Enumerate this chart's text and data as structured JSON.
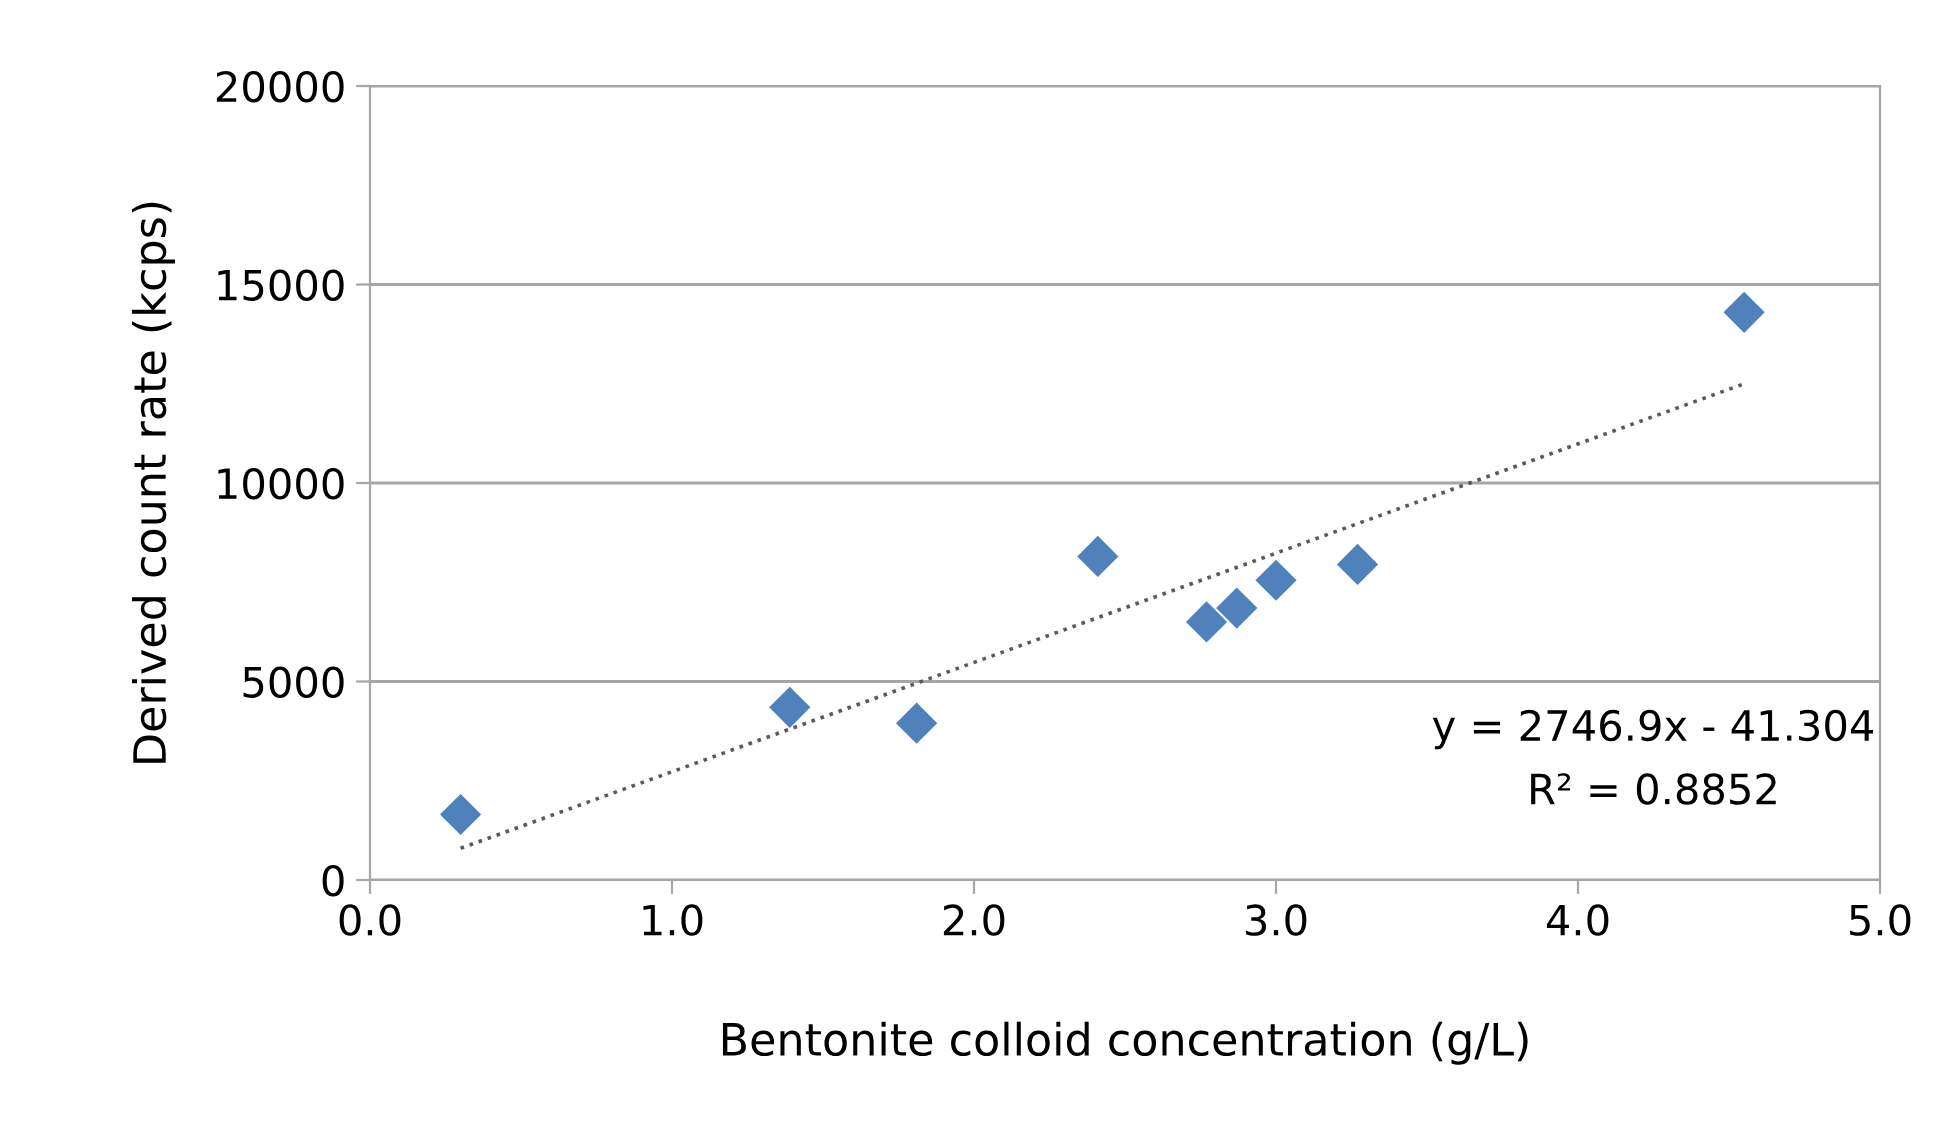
{
  "chart_data": {
    "type": "scatter",
    "xlabel": "Bentonite colloid concentration (g/L)",
    "ylabel": "Derived count rate (kcps)",
    "xlim": [
      0,
      5
    ],
    "xticks": [
      {
        "value": 0,
        "label": "0.0"
      },
      {
        "value": 1,
        "label": "1.0"
      },
      {
        "value": 2,
        "label": "2.0"
      },
      {
        "value": 3,
        "label": "3.0"
      },
      {
        "value": 4,
        "label": "4.0"
      },
      {
        "value": 5,
        "label": "5.0"
      }
    ],
    "ylim": [
      0,
      20000
    ],
    "yticks": [
      0,
      5000,
      10000,
      15000,
      20000
    ],
    "grid": "y",
    "series": [
      {
        "marker": "diamond",
        "color": "#4f81bd",
        "x": [
          0.3,
          1.39,
          1.81,
          2.41,
          2.77,
          2.87,
          3.0,
          3.27,
          4.55
        ],
        "values": [
          1650,
          4350,
          3950,
          8150,
          6500,
          6850,
          7550,
          7950,
          14300
        ]
      },
      {
        "type": "line",
        "color": "#595959",
        "line_style": "dotted",
        "x": [
          0.3,
          4.55
        ],
        "values": [
          800,
          12500
        ]
      }
    ],
    "annotations": [
      "y = 2746.9x - 41.304",
      "R² = 0.8852"
    ]
  }
}
